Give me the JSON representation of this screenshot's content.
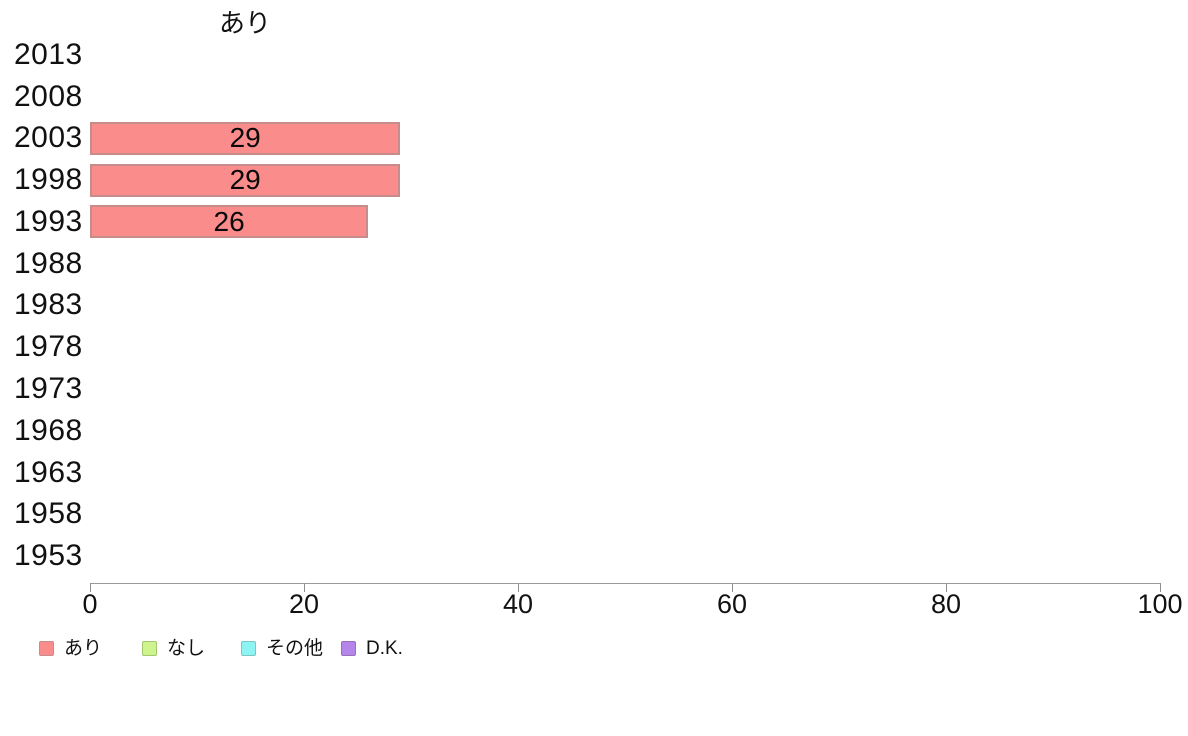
{
  "chart_data": {
    "type": "bar",
    "orientation": "horizontal",
    "title": "あり",
    "categories": [
      "2013",
      "2008",
      "2003",
      "1998",
      "1993",
      "1988",
      "1983",
      "1978",
      "1973",
      "1968",
      "1963",
      "1958",
      "1953"
    ],
    "series": [
      {
        "name": "あり",
        "fill": "#FA8C8C",
        "border": "#C68C8C",
        "values": [
          null,
          null,
          29,
          29,
          26,
          null,
          null,
          null,
          null,
          null,
          null,
          null,
          null
        ]
      },
      {
        "name": "なし",
        "fill": "#CDF48D",
        "border": "#A4C66E",
        "values": [
          null,
          null,
          null,
          null,
          null,
          null,
          null,
          null,
          null,
          null,
          null,
          null,
          null
        ]
      },
      {
        "name": "その他",
        "fill": "#8DF3F3",
        "border": "#7CC5C5",
        "values": [
          null,
          null,
          null,
          null,
          null,
          null,
          null,
          null,
          null,
          null,
          null,
          null,
          null
        ]
      },
      {
        "name": "D.K.",
        "fill": "#B685E9",
        "border": "#9571BC",
        "values": [
          null,
          null,
          null,
          null,
          null,
          null,
          null,
          null,
          null,
          null,
          null,
          null,
          null
        ]
      }
    ],
    "bar_value_labels": [
      "",
      "",
      "29",
      "29",
      "26",
      "",
      "",
      "",
      "",
      "",
      "",
      "",
      ""
    ],
    "xlim": [
      0,
      100
    ],
    "x_ticks": [
      "0",
      "20",
      "40",
      "60",
      "80",
      "100"
    ],
    "grid": false,
    "legend_position": "bottom-left",
    "axis_color": "#9a9a9a",
    "text_color": "#111111"
  }
}
